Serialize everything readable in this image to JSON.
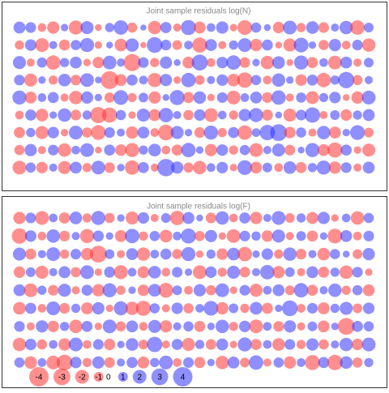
{
  "chart_data": [
    {
      "type": "bubble",
      "title": "Joint sample residuals log(N)",
      "positive_color": "#3333ff",
      "negative_color": "#ff3333",
      "series": [
        {
          "values": [
            1.5,
            1.2,
            -0.8,
            -1.6,
            0.6,
            -2.1,
            1.8,
            -0.5,
            0.9,
            2.2,
            -1.1,
            0.4,
            -1.9,
            1.3,
            -0.7,
            2.4,
            -1.5,
            0.8,
            1.6,
            -0.6,
            -2.3,
            1.1,
            0.5,
            -1.4,
            2.0,
            -0.9,
            1.7,
            -1.2,
            0.7,
            1.9,
            -2.2,
            1.0
          ]
        },
        {
          "values": [
            -0.9,
            1.4,
            -2.0,
            0.7,
            -1.3,
            1.1,
            2.1,
            -0.6,
            0.5,
            -1.7,
            1.9,
            -0.4,
            2.6,
            1.2,
            -1.0,
            0.8,
            -2.4,
            1.5,
            -0.7,
            0.9,
            2.0,
            -1.6,
            1.3,
            -0.5,
            -1.8,
            2.3,
            0.6,
            -1.1,
            1.6,
            -0.8,
            1.2,
            -1.9
          ]
        },
        {
          "values": [
            1.8,
            -0.7,
            1.1,
            -2.2,
            0.9,
            1.5,
            -0.6,
            -1.4,
            2.0,
            0.7,
            -3.1,
            1.2,
            -0.9,
            1.6,
            0.5,
            -1.5,
            2.7,
            -0.8,
            1.4,
            2.2,
            -1.2,
            0.6,
            -1.9,
            1.7,
            -0.5,
            2.1,
            -1.3,
            0.8,
            -2.0,
            1.5,
            -0.7,
            1.0
          ]
        },
        {
          "values": [
            1.2,
            -1.8,
            0.6,
            -0.9,
            1.7,
            -1.2,
            2.0,
            0.5,
            -3.4,
            -1.5,
            1.3,
            0.8,
            -2.1,
            1.6,
            -0.6,
            2.2,
            -1.0,
            0.7,
            1.4,
            -1.7,
            -2.5,
            1.1,
            -0.8,
            1.9,
            0.6,
            -1.4,
            1.3,
            -2.2,
            0.9,
            2.8,
            -1.1,
            0.7
          ]
        },
        {
          "values": [
            2.1,
            -1.5,
            0.8,
            1.3,
            -0.7,
            -1.9,
            1.6,
            0.6,
            -1.1,
            2.3,
            -0.9,
            1.0,
            -1.6,
            0.5,
            2.4,
            -1.3,
            1.7,
            -0.6,
            1.2,
            -2.0,
            0.8,
            1.5,
            -1.2,
            2.2,
            -0.7,
            1.1,
            -1.8,
            0.9,
            1.4,
            -0.5,
            -1.6,
            2.0
          ]
        },
        {
          "values": [
            -0.8,
            1.3,
            -1.7,
            0.6,
            1.9,
            -1.2,
            0.9,
            -2.8,
            -2.4,
            1.1,
            -0.6,
            1.8,
            -1.5,
            2.2,
            0.7,
            -1.1,
            1.4,
            -2.0,
            0.8,
            -0.9,
            1.6,
            2.1,
            -1.3,
            0.5,
            -1.8,
            1.2,
            2.5,
            -0.7,
            1.0,
            -1.4,
            0.9,
            1.5
          ]
        },
        {
          "values": [
            -1.3,
            0.9,
            -1.8,
            1.4,
            -0.6,
            2.0,
            -1.1,
            -2.3,
            1.2,
            0.7,
            -1.6,
            1.5,
            -0.8,
            -2.6,
            1.8,
            0.6,
            -1.2,
            2.1,
            -0.9,
            1.3,
            -2.2,
            0.8,
            2.5,
            3.0,
            -1.4,
            1.1,
            -0.7,
            1.9,
            -1.5,
            0.6,
            2.3,
            -1.0
          ]
        },
        {
          "values": [
            -1.1,
            1.6,
            -0.7,
            1.2,
            -1.9,
            0.8,
            2.0,
            -0.5,
            1.3,
            -1.4,
            -2.1,
            0.9,
            1.7,
            -0.8,
            -1.3,
            2.2,
            0.6,
            -1.6,
            1.4,
            -0.9,
            1.1,
            -2.0,
            0.7,
            1.8,
            -1.2,
            0.5,
            2.1,
            -1.5,
            -2.4,
            1.3,
            -0.6,
            -1.8
          ]
        },
        {
          "values": [
            -2.0,
            1.1,
            -1.4,
            0.7,
            -1.8,
            1.5,
            -0.9,
            2.0,
            -1.2,
            0.6,
            -2.2,
            1.3,
            -0.7,
            3.2,
            1.6,
            -1.1,
            -1.9,
            0.8,
            1.4,
            -0.6,
            2.3,
            -1.5,
            1.0,
            -0.8,
            1.7,
            -1.3,
            0.9,
            2.1,
            -1.6,
            1.2,
            -0.7,
            1.5
          ]
        }
      ]
    },
    {
      "type": "bubble",
      "title": "Joint sample residuals log(F)",
      "positive_color": "#3333ff",
      "negative_color": "#ff3333",
      "legend": [
        -4,
        -3,
        -2,
        -1,
        0,
        1,
        2,
        3,
        4
      ],
      "series": [
        {
          "values": [
            -1.6,
            1.2,
            -2.0,
            0.8,
            -1.3,
            1.7,
            -0.9,
            2.1,
            -1.1,
            0.6,
            -1.8,
            1.4,
            -0.7,
            1.0,
            -2.2,
            1.5,
            0.5,
            -1.2,
            1.9,
            -0.8,
            1.3,
            -1.6,
            0.7,
            2.0,
            -1.0,
            0.9,
            -1.5,
            1.6,
            -0.6,
            0.8,
            -1.9,
            1.1
          ]
        },
        {
          "values": [
            -2.5,
            1.4,
            -0.8,
            1.9,
            -1.2,
            0.7,
            -2.1,
            1.3,
            0.6,
            -1.5,
            2.2,
            -0.9,
            1.1,
            -1.7,
            0.8,
            2.4,
            -1.1,
            1.6,
            -0.6,
            -2.0,
            1.2,
            0.9,
            -1.4,
            1.8,
            -0.7,
            1.0,
            -1.3,
            0.6,
            -2.3,
            1.5,
            -0.8,
            1.2
          ]
        },
        {
          "values": [
            1.8,
            -1.3,
            0.7,
            2.0,
            -0.9,
            1.2,
            -1.6,
            -3.0,
            1.0,
            -0.7,
            1.5,
            -1.9,
            0.8,
            1.3,
            -1.1,
            2.1,
            -0.6,
            0.9,
            -1.4,
            1.7,
            -2.2,
            0.6,
            1.4,
            -0.9,
            1.9,
            -1.2,
            0.7,
            -1.7,
            1.1,
            0.5,
            -1.0,
            1.6
          ]
        },
        {
          "values": [
            -1.4,
            1.0,
            -1.8,
            0.7,
            1.5,
            -1.1,
            2.0,
            -0.6,
            1.3,
            -2.1,
            0.8,
            -1.5,
            1.7,
            -0.8,
            1.2,
            0.6,
            -2.0,
            1.4,
            -0.9,
            1.8,
            -1.2,
            0.7,
            2.2,
            -1.6,
            1.0,
            -0.7,
            1.5,
            -1.3,
            0.9,
            -1.9,
            1.2,
            -0.6
          ]
        },
        {
          "values": [
            1.5,
            -2.0,
            0.9,
            -1.2,
            1.8,
            -0.7,
            1.3,
            -1.6,
            2.1,
            -0.9,
            0.6,
            -1.4,
            1.7,
            -2.3,
            1.0,
            -0.8,
            1.6,
            -1.1,
            2.0,
            -0.6,
            1.2,
            -1.8,
            0.8,
            1.5,
            -1.0,
            2.2,
            -1.3,
            0.7,
            1.9,
            -0.9,
            1.1,
            -1.5
          ]
        },
        {
          "values": [
            -1.7,
            1.3,
            -0.8,
            2.0,
            -1.2,
            0.9,
            -1.5,
            1.6,
            -0.6,
            2.1,
            -1.9,
            -2.4,
            1.1,
            -0.7,
            1.4,
            -1.1,
            0.8,
            2.3,
            -1.6,
            1.0,
            -0.9,
            1.7,
            -1.3,
            0.6,
            2.6,
            -0.8,
            1.2,
            -1.5,
            0.9,
            1.8,
            -1.0,
            1.4
          ]
        },
        {
          "values": [
            1.2,
            -0.7,
            1.6,
            -1.4,
            0.9,
            -1.9,
            1.3,
            -0.6,
            2.0,
            -1.1,
            1.5,
            -0.8,
            1.8,
            -1.6,
            0.7,
            1.1,
            -1.3,
            0.6,
            1.9,
            -0.9,
            1.4,
            -2.0,
            0.8,
            -1.2,
            1.6,
            -0.7,
            1.0,
            -1.5,
            0.6,
            -3.0,
            1.3,
            1.1
          ]
        },
        {
          "values": [
            -1.9,
            1.4,
            -1.1,
            0.8,
            -1.6,
            2.0,
            -0.8,
            1.2,
            -1.4,
            0.6,
            1.7,
            -1.0,
            2.5,
            -0.7,
            1.3,
            -1.8,
            0.9,
            -1.2,
            1.5,
            -0.6,
            2.1,
            -1.3,
            0.8,
            -1.7,
            1.2,
            -0.9,
            1.6,
            -1.1,
            0.7,
            1.9,
            -1.4,
            2.0
          ]
        },
        {
          "values": [
            1.1,
            -1.7,
            0.8,
            -2.0,
            -2.6,
            1.4,
            -0.9,
            1.6,
            -1.2,
            0.7,
            1.3,
            -1.5,
            0.9,
            2.0,
            -0.8,
            1.2,
            -1.3,
            0.6,
            -1.9,
            1.5,
            -1.0,
            2.2,
            -0.7,
            1.1,
            -1.6,
            0.8,
            -2.4,
            1.3,
            -2.5,
            1.7,
            -1.1,
            0.9
          ]
        }
      ]
    }
  ]
}
